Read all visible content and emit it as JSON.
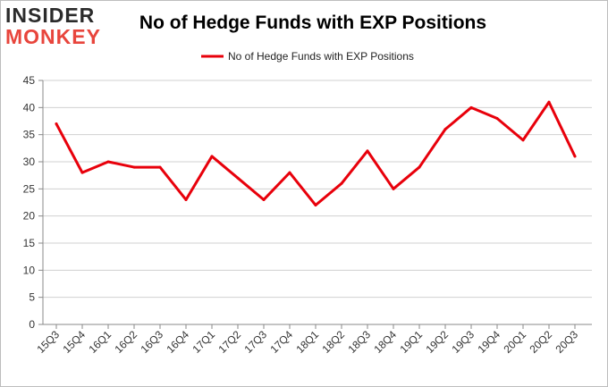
{
  "logo": {
    "line1": "INSIDER",
    "line2": "MONKEY"
  },
  "chart_data": {
    "type": "line",
    "title": "No of Hedge Funds with EXP Positions",
    "xlabel": "",
    "ylabel": "",
    "ylim": [
      0,
      45
    ],
    "yticks": [
      0,
      5,
      10,
      15,
      20,
      25,
      30,
      35,
      40,
      45
    ],
    "grid": true,
    "legend_position": "top-center",
    "line_color": "#e8000b",
    "categories": [
      "15Q3",
      "15Q4",
      "16Q1",
      "16Q2",
      "16Q3",
      "16Q4",
      "17Q1",
      "17Q2",
      "17Q3",
      "17Q4",
      "18Q1",
      "18Q2",
      "18Q3",
      "18Q4",
      "19Q1",
      "19Q2",
      "19Q3",
      "19Q4",
      "20Q1",
      "20Q2",
      "20Q3"
    ],
    "series": [
      {
        "name": "No of Hedge Funds with EXP Positions",
        "values": [
          37,
          28,
          30,
          29,
          29,
          23,
          31,
          27,
          23,
          28,
          22,
          26,
          32,
          25,
          29,
          36,
          40,
          38,
          34,
          41,
          31
        ]
      }
    ]
  }
}
